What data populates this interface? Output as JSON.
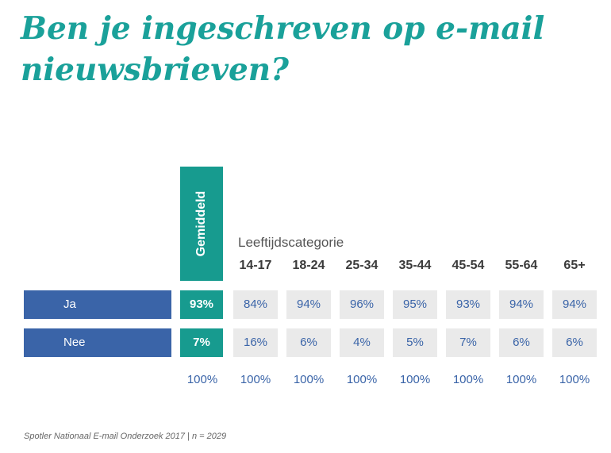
{
  "title": "Ben je ingeschreven op e-mail nieuwsbrieven?",
  "source": "Spotler Nationaal E-mail Onderzoek 2017 | n = 2029",
  "chart_data": {
    "type": "table",
    "title": "Ben je ingeschreven op e-mail nieuwsbrieven?",
    "average_label": "Gemiddeld",
    "group_label": "Leeftijdscategorie",
    "categories": [
      "14-17",
      "18-24",
      "25-34",
      "35-44",
      "45-54",
      "55-64",
      "65+"
    ],
    "rows": [
      {
        "name": "Ja",
        "average": "93%",
        "values": [
          "84%",
          "94%",
          "96%",
          "95%",
          "93%",
          "94%",
          "94%"
        ]
      },
      {
        "name": "Nee",
        "average": "7%",
        "values": [
          "16%",
          "6%",
          "4%",
          "5%",
          "7%",
          "6%",
          "6%"
        ]
      }
    ],
    "totals": {
      "average": "100%",
      "values": [
        "100%",
        "100%",
        "100%",
        "100%",
        "100%",
        "100%",
        "100%"
      ]
    }
  },
  "colors": {
    "title": "#1aa19a",
    "average": "#179b8f",
    "row_label": "#3a64a8",
    "cell_bg": "#eaeaea",
    "cell_text": "#3a64a8"
  }
}
